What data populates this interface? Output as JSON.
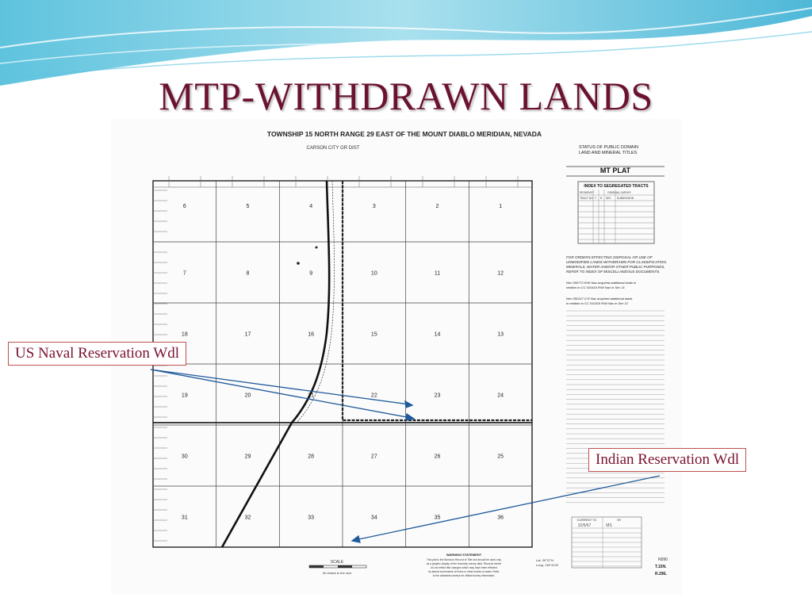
{
  "slide": {
    "title": "MTP-WITHDRAWN LANDS"
  },
  "plat": {
    "heading": "TOWNSHIP 15 NORTH RANGE 29 EAST OF THE MOUNT DIABLO MERIDIAN, NEVADA",
    "district": "CARSON CITY GR DIST",
    "status_line1": "STATUS OF PUBLIC DOMAIN",
    "status_line2": "LAND AND MINERAL TITLES",
    "plat_type": "MT PLAT",
    "index_title": "INDEX TO SEGREGATED TRACTS",
    "index_cols": [
      "RESURVEY",
      "ORIGINAL SURVEY",
      "TRACT NO",
      "T",
      "R",
      "SEC",
      "SUBDIVISION"
    ],
    "orders_note": [
      "FOR ORDERS EFFECTING DISPOSAL OR USE OF",
      "UNMODIFIED LANDS WITHDRAWN FOR CLASSIFICATION,",
      "MINERALS, WATER AND/OR OTHER PUBLIC PURPOSES,",
      "REFER TO INDEX OF MISCELLANEOUS DOCUMENTS."
    ],
    "note1": [
      "Nev 050772 R/W Nav acquired additional lands in",
      "relation to CC 010410 R/W Nav in Sec 21"
    ],
    "note2": [
      "Nev 050147 G.R Nav acquired additional lands",
      "in relation to CC 010410 R/W Nav in Sec 21"
    ],
    "sections": [
      [
        "6",
        "5",
        "4",
        "3",
        "2",
        "1"
      ],
      [
        "7",
        "8",
        "9",
        "10",
        "11",
        "12"
      ],
      [
        "18",
        "17",
        "16",
        "15",
        "14",
        "13"
      ],
      [
        "19",
        "20",
        "21",
        "22",
        "23",
        "24"
      ],
      [
        "30",
        "29",
        "28",
        "27",
        "26",
        "25"
      ],
      [
        "31",
        "32",
        "33",
        "34",
        "35",
        "36"
      ]
    ],
    "scale_label": "SCALE",
    "scale_caption": "30 chains to the inch",
    "warning_title": "WARNING STATEMENT",
    "warning_text": [
      "This plat is the Bureau's Record of Title and should be used only",
      "as a graphic display of the township survey data. Records herein",
      "do not reflect title changes which may have been effected",
      "by lateral movements of rivers or other bodies of water. Refer",
      "to the cadastral surveys for official survey information."
    ],
    "lat": "Lat. 39°07'N",
    "long": "Long. 118°41'W",
    "current_to_label": "CURRENT TO",
    "by_label": "BY",
    "current_to_value": "10/5/67",
    "by_value": "MS",
    "ref_code": [
      "N090",
      "T.15N.",
      "R.29E."
    ]
  },
  "callouts": {
    "naval": "US Naval Reservation Wdl",
    "indian": "Indian Reservation Wdl"
  },
  "colors": {
    "title": "#6b1232",
    "callout_border": "#c0504d",
    "arrow": "#1f5a9a"
  }
}
